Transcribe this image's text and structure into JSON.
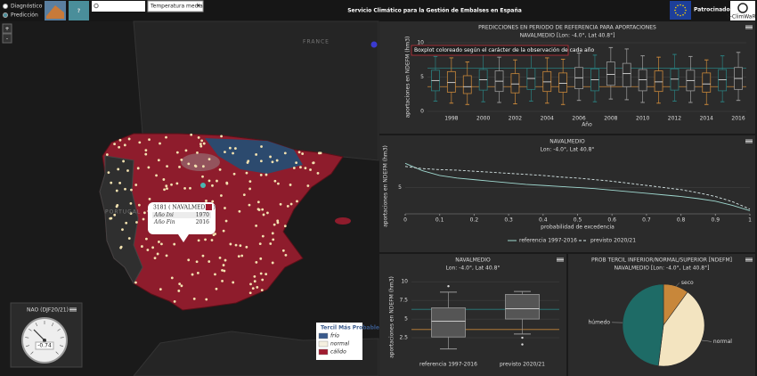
{
  "header": {
    "title": "Servicio Climático para la Gestión de Embalses en España",
    "modes": [
      "Diagnóstico",
      "Predicción"
    ],
    "help": "?",
    "variable": "Temperatura media",
    "sponsors": "Patrocinadores",
    "logo": "S-ClimWaRe"
  },
  "map": {
    "zoom_in": "+",
    "zoom_out": "-",
    "labels": [
      "FRANCE",
      "PORTUGAL"
    ],
    "popup": {
      "title": "3181 ( NAVALMEDIO )",
      "rows": [
        {
          "label": "Año Ini",
          "value": 1970
        },
        {
          "label": "Año Fin",
          "value": 2016
        }
      ]
    },
    "gauge": {
      "title": "NAO (DJF20/21)",
      "value": -0.74
    },
    "legend": {
      "title": "Tercil Más Probable",
      "items": [
        {
          "label": "frío",
          "color": "#3a5a8c"
        },
        {
          "label": "normal",
          "color": "#f5f0e0"
        },
        {
          "label": "cálido",
          "color": "#a01c30"
        }
      ]
    }
  },
  "chart_data": [
    {
      "type": "boxplot",
      "title": "PREDICCIONES EN PERIODO DE REFERENCIA PARA APORTACIONES",
      "subtitle": "NAVALMEDIO [Lon: -4.0°, Lat 40.8°]",
      "annotation": "Boxplot coloreado según el carácter de la observación de cada año",
      "y_label": "aportaciones en NDEFM (hm3)",
      "x_label": "Año",
      "x": [
        1997,
        1998,
        1999,
        2000,
        2001,
        2002,
        2003,
        2004,
        2005,
        2006,
        2007,
        2008,
        2009,
        2010,
        2011,
        2012,
        2013,
        2014,
        2015,
        2016
      ],
      "xlim": [
        1996.5,
        2016.5
      ],
      "xticks": [
        1998,
        2000,
        2002,
        2004,
        2006,
        2008,
        2010,
        2012,
        2014,
        2016
      ],
      "ylim": [
        0,
        10
      ],
      "yticks": [
        0,
        5,
        10
      ],
      "low": [
        1.5,
        1.2,
        1.0,
        1.4,
        1.3,
        1.1,
        1.5,
        1.2,
        1.0,
        1.6,
        1.4,
        1.8,
        1.7,
        1.3,
        1.2,
        1.5,
        1.3,
        1.0,
        1.4,
        1.6
      ],
      "q1": [
        3.0,
        2.8,
        2.6,
        3.1,
        2.9,
        2.7,
        3.2,
        2.9,
        2.8,
        3.3,
        3.0,
        3.8,
        3.6,
        3.0,
        2.9,
        3.1,
        3.0,
        2.8,
        3.0,
        3.2
      ],
      "median": [
        4.5,
        4.2,
        3.6,
        4.6,
        4.4,
        4.0,
        4.8,
        4.3,
        4.1,
        4.9,
        4.6,
        5.4,
        5.5,
        4.6,
        4.3,
        4.7,
        4.5,
        4.0,
        4.6,
        4.8
      ],
      "q3": [
        6.0,
        5.8,
        5.2,
        6.1,
        5.9,
        5.5,
        6.3,
        5.8,
        5.6,
        6.4,
        6.2,
        7.2,
        7.0,
        6.1,
        5.9,
        6.2,
        6.0,
        5.6,
        6.1,
        6.4
      ],
      "high": [
        8.0,
        7.8,
        7.2,
        8.2,
        7.9,
        7.5,
        8.4,
        7.8,
        7.6,
        8.5,
        8.2,
        9.3,
        9.1,
        8.1,
        7.9,
        8.3,
        8.0,
        7.5,
        8.1,
        8.6
      ],
      "colors": [
        "#2a7f7f",
        "#c8873a",
        "#c8873a",
        "#2a7f7f",
        "#999999",
        "#c8873a",
        "#2a7f7f",
        "#c8873a",
        "#c8873a",
        "#999999",
        "#2a7f7f",
        "#999999",
        "#999999",
        "#999999",
        "#c8873a",
        "#2a7f7f",
        "#999999",
        "#c8873a",
        "#2a7f7f",
        "#999999"
      ],
      "thresholds": [
        {
          "value": 3.6,
          "color": "#c8873a"
        },
        {
          "value": 6.3,
          "color": "#2a7f7f"
        }
      ]
    },
    {
      "type": "line",
      "title": "NAVALMEDIO",
      "subtitle": "Lon: -4.0°, Lat 40.8°",
      "y_label": "aportaciones en NDEFM (hm3)",
      "x_label": "probabilidad de excedencia",
      "x": [
        0,
        0.05,
        0.1,
        0.15,
        0.2,
        0.25,
        0.3,
        0.35,
        0.4,
        0.45,
        0.5,
        0.55,
        0.6,
        0.65,
        0.7,
        0.75,
        0.8,
        0.85,
        0.9,
        0.95,
        1
      ],
      "xlim": [
        0,
        1
      ],
      "xticks": [
        0,
        0.1,
        0.2,
        0.3,
        0.4,
        0.5,
        0.6,
        0.7,
        0.8,
        0.9,
        1
      ],
      "ylim": [
        0,
        10.5
      ],
      "yticks": [
        5
      ],
      "series": [
        {
          "name": "referencia 1997-2016",
          "color": "#9fd8cf",
          "dashed": false,
          "values": [
            9.6,
            8.2,
            7.3,
            6.8,
            6.5,
            6.2,
            5.9,
            5.6,
            5.4,
            5.2,
            5.0,
            4.8,
            4.5,
            4.2,
            3.9,
            3.6,
            3.3,
            2.9,
            2.4,
            1.6,
            0.6
          ]
        },
        {
          "name": "previsto 2020/21",
          "color": "#d8e8e8",
          "dashed": true,
          "values": [
            9.0,
            8.6,
            8.4,
            8.3,
            8.1,
            7.9,
            7.7,
            7.5,
            7.3,
            7.0,
            6.8,
            6.5,
            6.2,
            5.8,
            5.4,
            5.0,
            4.6,
            4.0,
            3.3,
            2.3,
            0.9
          ]
        }
      ]
    },
    {
      "type": "boxplot",
      "title": "NAVALMEDIO",
      "subtitle": "Lon: -4.0°, Lat 40.8°",
      "y_label": "aportaciones en NDEFM (hm3)",
      "categories": [
        "referencia 1997-2016",
        "previsto 2020/21"
      ],
      "ylim": [
        0,
        10.5
      ],
      "yticks": [
        {
          "value": 2.5,
          "label": "2.5"
        },
        5,
        {
          "value": 7.5,
          "label": "7.5"
        },
        10
      ],
      "low": [
        1.0,
        3.0
      ],
      "q1": [
        2.6,
        5.0
      ],
      "median": [
        4.7,
        6.4
      ],
      "q3": [
        6.5,
        8.3
      ],
      "high": [
        8.6,
        8.7
      ],
      "outliers": [
        [
          9.4
        ],
        [
          2.5,
          1.6
        ]
      ],
      "colors": [
        "#999999",
        "#999999"
      ],
      "thresholds": [
        {
          "value": 3.6,
          "color": "#c8873a"
        },
        {
          "value": 6.3,
          "color": "#2a7f7f"
        }
      ]
    },
    {
      "type": "pie",
      "title": "PROB TERCIL INFERIOR/NORMAL/SUPERIOR [NDEFM]",
      "subtitle": "NAVALMEDIO [Lon: -4.0°, Lat 40.8°]",
      "labels": [
        "seco",
        "normal",
        "húmedo"
      ],
      "values": [
        10,
        42,
        48
      ],
      "colors": [
        "#c8873a",
        "#f3e4c0",
        "#1e6b66"
      ]
    }
  ]
}
